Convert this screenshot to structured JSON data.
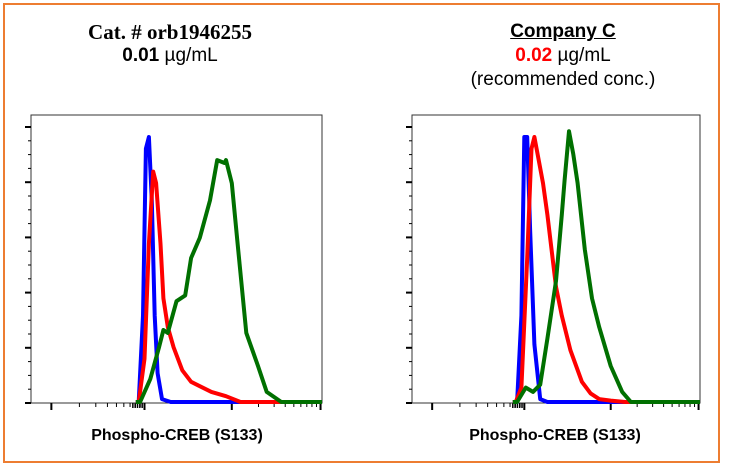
{
  "panels": [
    {
      "title": "Cat. # orb1946255",
      "conc_value": "0.01",
      "conc_unit": " µg/mL",
      "note": "",
      "xlabel": "Phospho-CREB (S133)"
    },
    {
      "title": "Company C",
      "conc_value": "0.02",
      "conc_unit": " µg/mL",
      "note": "(recommended conc.)",
      "xlabel": "Phospho-CREB (S133)"
    }
  ],
  "colors": {
    "border": "#ED7D31",
    "blue": "#0000FF",
    "red": "#FF0000",
    "green": "#007000",
    "highlight": "#FF0000"
  },
  "chart_data": [
    {
      "type": "line",
      "title": "Cat. # orb1946255",
      "xlabel": "Phospho-CREB (S133)",
      "ylabel": "",
      "xscale": "log (axis ticks unlabeled, x as % of axis range)",
      "ylim": [
        0,
        100
      ],
      "grid": false,
      "series": [
        {
          "color": "#0000FF",
          "x": [
            36,
            37,
            38.5,
            39.5,
            40.5,
            41.5,
            42.5,
            43.5,
            45,
            48,
            100
          ],
          "y": [
            0,
            0,
            30,
            88,
            92,
            70,
            30,
            10,
            1,
            0,
            0
          ]
        },
        {
          "color": "#FF0000",
          "x": [
            36,
            37,
            39,
            40.5,
            42,
            43,
            44.5,
            45.5,
            47,
            49,
            52,
            55,
            58,
            62,
            67,
            72,
            100
          ],
          "y": [
            0,
            0,
            15,
            55,
            80,
            76,
            55,
            36,
            26,
            19,
            11,
            7,
            5.5,
            3.5,
            2,
            0,
            0
          ]
        },
        {
          "color": "#007000",
          "x": [
            36,
            37.5,
            41,
            44,
            45.5,
            47,
            50,
            53,
            55,
            58,
            61.5,
            64,
            66.5,
            67,
            69,
            71,
            74,
            78,
            81,
            86,
            100
          ],
          "y": [
            0,
            0,
            8,
            19,
            25,
            24,
            35,
            37,
            50,
            57,
            70,
            84,
            83,
            84,
            76,
            55,
            24,
            12.5,
            3.5,
            0,
            0
          ]
        }
      ]
    },
    {
      "type": "line",
      "title": "Company C",
      "xlabel": "Phospho-CREB (S133)",
      "ylabel": "",
      "xscale": "log (axis ticks unlabeled, x as % of axis range)",
      "ylim": [
        0,
        100
      ],
      "grid": false,
      "series": [
        {
          "color": "#0000FF",
          "x": [
            35,
            36.5,
            38,
            39,
            40,
            41,
            42.5,
            44.5,
            47,
            100
          ],
          "y": [
            0,
            0,
            30,
            92,
            92,
            60,
            20,
            1,
            0,
            0
          ]
        },
        {
          "color": "#FF0000",
          "x": [
            35,
            36,
            38,
            40,
            41.5,
            42.5,
            45.5,
            47,
            50,
            52,
            55,
            59,
            62,
            65,
            69,
            74,
            100
          ],
          "y": [
            0,
            0,
            5,
            50,
            88,
            92,
            76,
            65,
            40,
            30,
            18,
            7,
            3,
            1,
            0.5,
            0,
            0
          ]
        },
        {
          "color": "#007000",
          "x": [
            35,
            36.5,
            39.5,
            42,
            44.5,
            47,
            50,
            52,
            53,
            54.5,
            56,
            57.5,
            60,
            62.5,
            65,
            69,
            73,
            76,
            100
          ],
          "y": [
            0,
            0,
            5,
            3.5,
            6,
            22,
            42,
            65,
            77,
            94,
            86,
            76,
            53,
            36,
            26,
            12.5,
            3.5,
            0,
            0
          ]
        }
      ]
    }
  ]
}
